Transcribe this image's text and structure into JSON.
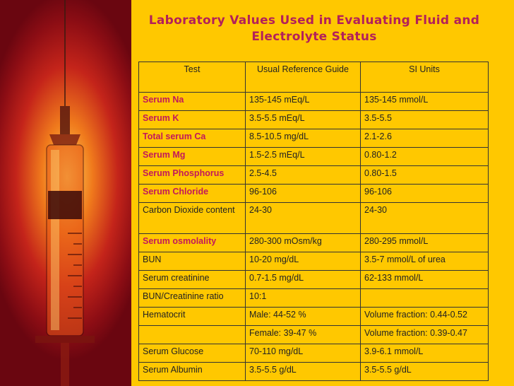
{
  "title_line1": "Laboratory Values Used in Evaluating Fluid and",
  "title_line2": "Electrolyte Status",
  "headers": [
    "Test",
    "Usual Reference Guide",
    "SI Units"
  ],
  "rows": [
    {
      "test": "Serum Na",
      "ref": "135-145 mEq/L",
      "si": "135-145 mmol/L",
      "highlight": true
    },
    {
      "test": "Serum K",
      "ref": "3.5-5.5 mEq/L",
      "si": "3.5-5.5",
      "highlight": true
    },
    {
      "test": "Total serum Ca",
      "ref": "8.5-10.5 mg/dL",
      "si": "2.1-2.6",
      "highlight": true
    },
    {
      "test": "Serum Mg",
      "ref": "1.5-2.5 mEq/L",
      "si": "0.80-1.2",
      "highlight": true
    },
    {
      "test": "Serum Phosphorus",
      "ref": "2.5-4.5",
      "si": "0.80-1.5",
      "highlight": true
    },
    {
      "test": "Serum Chloride",
      "ref": "96-106",
      "si": "96-106",
      "highlight": true
    },
    {
      "test": "Carbon Dioxide content",
      "ref": "24-30",
      "si": "24-30",
      "highlight": false
    },
    {
      "test": "Serum osmolality",
      "ref": "280-300 mOsm/kg",
      "si": "280-295 mmol/L",
      "highlight": true
    },
    {
      "test": "BUN",
      "ref": "10-20 mg/dL",
      "si": "3.5-7 mmol/L of urea",
      "highlight": false
    },
    {
      "test": "Serum creatinine",
      "ref": "0.7-1.5 mg/dL",
      "si": "62-133 mmol/L",
      "highlight": false
    },
    {
      "test": "BUN/Creatinine ratio",
      "ref": "10:1",
      "si": "",
      "highlight": false
    },
    {
      "test": "Hematocrit",
      "ref": "Male: 44-52 %",
      "si": "Volume fraction: 0.44-0.52",
      "highlight": false
    },
    {
      "test": "",
      "ref": "Female: 39-47 %",
      "si": "Volume fraction: 0.39-0.47",
      "highlight": false
    },
    {
      "test": "Serum Glucose",
      "ref": "70-110 mg/dL",
      "si": "3.9-6.1 mmol/L",
      "highlight": false
    },
    {
      "test": "Serum Albumin",
      "ref": "3.5-5.5 g/dL",
      "si": "3.5-5.5 g/dL",
      "highlight": false
    }
  ],
  "colors": {
    "background": "#ffc800",
    "title": "#b3205a",
    "highlight": "#c2185b"
  },
  "image": {
    "subject": "syringe-with-needle"
  }
}
